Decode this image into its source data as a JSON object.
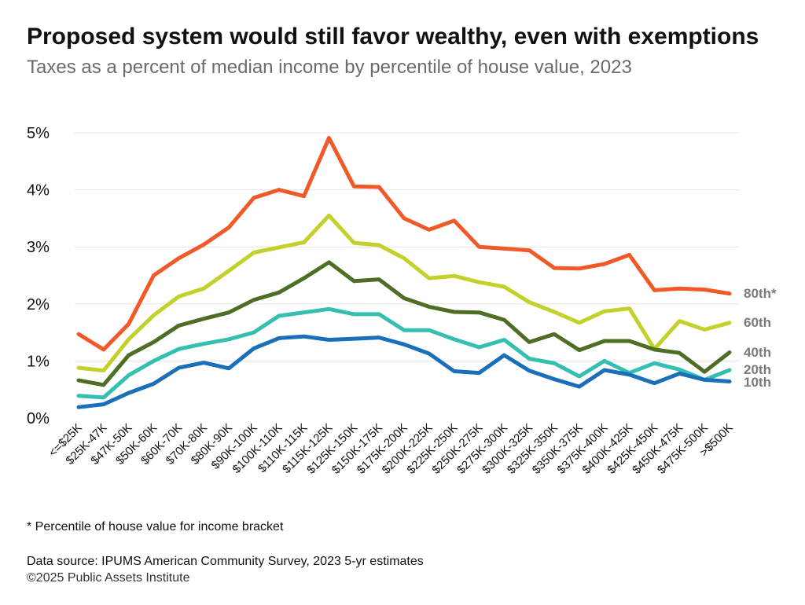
{
  "header": {
    "title": "Proposed system would still favor wealthy, even with exemptions",
    "subtitle": "Taxes as a percent of median income by percentile of house value, 2023"
  },
  "footer": {
    "footnote": "* Percentile of house value for income bracket",
    "source": "Data source: IPUMS American Community Survey, 2023 5-yr estimates",
    "copyright": "©2025 Public Assets Institute"
  },
  "chart_data": {
    "type": "line",
    "title": "Proposed system would still favor wealthy, even with exemptions",
    "subtitle": "Taxes as a percent of median income by percentile of house value, 2023",
    "xlabel": "",
    "ylabel": "",
    "ylim": [
      0,
      5
    ],
    "yticks": [
      "0%",
      "1%",
      "2%",
      "3%",
      "4%",
      "5%"
    ],
    "grid": true,
    "legend": "direct labels at right end of lines",
    "categories": [
      "<=$25K",
      "$25K-47K",
      "$47K-50K",
      "$50K-60K",
      "$60K-70K",
      "$70K-80K",
      "$80K-90K",
      "$90K-100K",
      "$100K-110K",
      "$110K-115K",
      "$115K-125K",
      "$125K-150K",
      "$150K-175K",
      "$175K-200K",
      "$200K-225K",
      "$225K-250K",
      "$250K-275K",
      "$275K-300K",
      "$300K-325K",
      "$325K-350K",
      "$350K-375K",
      "$375K-400K",
      "$400K-425K",
      "$425K-450K",
      "$450K-475K",
      "$475K-500K",
      ">$500K"
    ],
    "series": [
      {
        "name": "80th*",
        "color": "#f05a28",
        "values": [
          1.47,
          1.2,
          1.65,
          2.5,
          2.8,
          3.04,
          3.34,
          3.86,
          4.0,
          3.89,
          4.91,
          4.06,
          4.05,
          3.5,
          3.3,
          3.46,
          3.0,
          2.97,
          2.94,
          2.63,
          2.62,
          2.7,
          2.86,
          2.24,
          2.27,
          2.25,
          2.18
        ]
      },
      {
        "name": "60th",
        "color": "#c4d02b",
        "values": [
          0.88,
          0.83,
          1.38,
          1.8,
          2.13,
          2.27,
          2.58,
          2.9,
          2.99,
          3.08,
          3.55,
          3.07,
          3.03,
          2.8,
          2.45,
          2.49,
          2.38,
          2.3,
          2.03,
          1.86,
          1.67,
          1.87,
          1.92,
          1.21,
          1.7,
          1.55,
          1.67
        ]
      },
      {
        "name": "40th",
        "color": "#4e6e25",
        "values": [
          0.66,
          0.58,
          1.1,
          1.33,
          1.62,
          1.74,
          1.85,
          2.07,
          2.2,
          2.45,
          2.73,
          2.4,
          2.43,
          2.1,
          1.95,
          1.86,
          1.85,
          1.72,
          1.33,
          1.47,
          1.19,
          1.35,
          1.35,
          1.2,
          1.14,
          0.81,
          1.15
        ]
      },
      {
        "name": "20th",
        "color": "#34bfb0",
        "values": [
          0.39,
          0.36,
          0.75,
          1.0,
          1.21,
          1.3,
          1.38,
          1.5,
          1.79,
          1.85,
          1.91,
          1.82,
          1.82,
          1.54,
          1.54,
          1.38,
          1.24,
          1.37,
          1.04,
          0.96,
          0.73,
          1.0,
          0.79,
          0.96,
          0.85,
          0.67,
          0.84
        ]
      },
      {
        "name": "10th",
        "color": "#1a6fba",
        "values": [
          0.19,
          0.24,
          0.44,
          0.6,
          0.88,
          0.97,
          0.87,
          1.22,
          1.4,
          1.43,
          1.37,
          1.39,
          1.41,
          1.29,
          1.13,
          0.82,
          0.79,
          1.1,
          0.83,
          0.68,
          0.55,
          0.84,
          0.76,
          0.61,
          0.78,
          0.67,
          0.64
        ]
      }
    ]
  }
}
